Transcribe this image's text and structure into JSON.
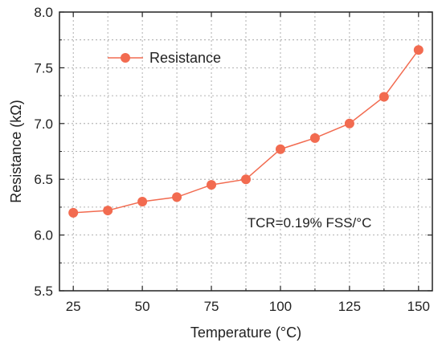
{
  "chart_data": {
    "type": "line",
    "xlabel": "Temperature (°C)",
    "ylabel": "Resistance (kΩ)",
    "xlim": [
      20,
      155
    ],
    "ylim": [
      5.5,
      8.0
    ],
    "xticks": [
      25,
      50,
      75,
      100,
      125,
      150
    ],
    "yticks": [
      5.5,
      6.0,
      6.5,
      7.0,
      7.5,
      8.0
    ],
    "ytick_labels": [
      "5.5",
      "6.0",
      "6.5",
      "7.0",
      "7.5",
      "8.0"
    ],
    "grid": true,
    "legend_position": "top-left",
    "series": [
      {
        "name": "Resistance",
        "color": "#f26b50",
        "x": [
          25,
          37.5,
          50,
          62.5,
          75,
          87.5,
          100,
          112.5,
          125,
          137.5,
          150
        ],
        "y": [
          6.2,
          6.22,
          6.3,
          6.34,
          6.45,
          6.5,
          6.77,
          6.87,
          7.0,
          7.24,
          7.66
        ]
      }
    ],
    "annotation": "TCR=0.19% FSS/°C"
  }
}
